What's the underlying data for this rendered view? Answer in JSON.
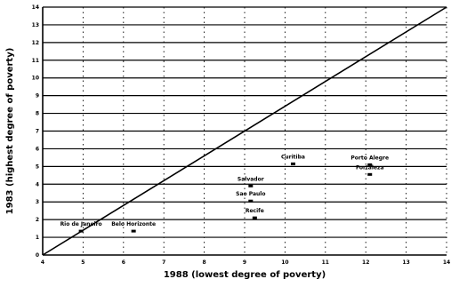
{
  "chart_data": {
    "type": "scatter",
    "xlabel": "1988 (lowest degree of poverty)",
    "ylabel": "1983 (highest degree of poverty)",
    "xlim": [
      4,
      14
    ],
    "ylim": [
      0,
      14
    ],
    "x_ticks": [
      "4",
      "5",
      "6",
      "7",
      "8",
      "9",
      "10",
      "11",
      "12",
      "13",
      "14"
    ],
    "y_ticks": [
      "0",
      "1",
      "2",
      "3",
      "4",
      "5",
      "6",
      "7",
      "8",
      "9",
      "10",
      "11",
      "12",
      "13",
      "14"
    ],
    "grid": true,
    "reference_line": {
      "type": "diagonal",
      "from": [
        4,
        0
      ],
      "to": [
        14,
        14
      ]
    },
    "points": [
      {
        "label": "Rio de Janeiro",
        "x": 4.95,
        "y": 1.35
      },
      {
        "label": "Belo Horizonte",
        "x": 6.25,
        "y": 1.35
      },
      {
        "label": "Recife",
        "x": 9.25,
        "y": 2.1
      },
      {
        "label": "Sao Paulo",
        "x": 9.15,
        "y": 3.05
      },
      {
        "label": "Salvador",
        "x": 9.15,
        "y": 3.9
      },
      {
        "label": "Curitiba",
        "x": 10.2,
        "y": 5.15
      },
      {
        "label": "Fortaleza",
        "x": 12.1,
        "y": 4.55
      },
      {
        "label": "Porto Alegre",
        "x": 12.1,
        "y": 5.1
      }
    ]
  }
}
